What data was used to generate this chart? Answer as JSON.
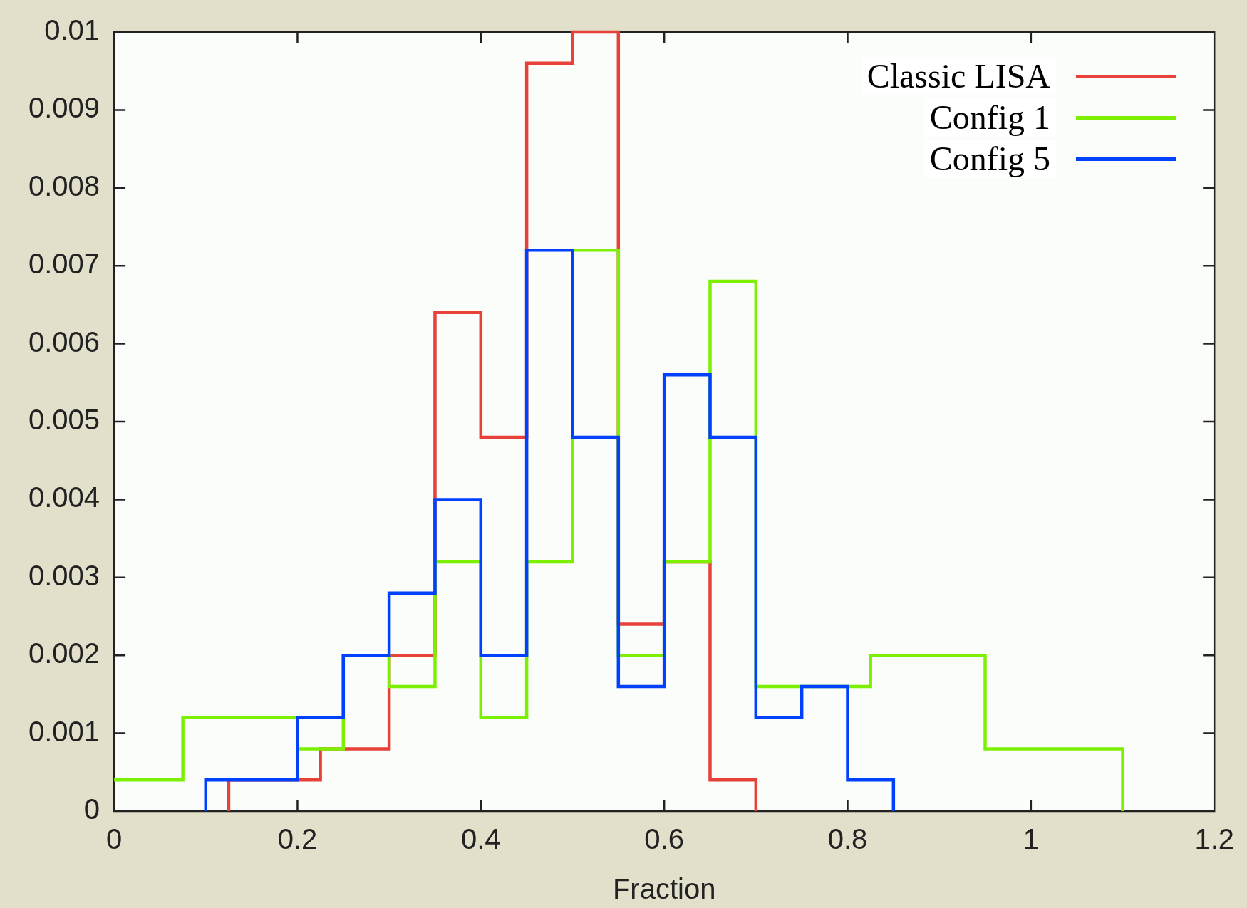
{
  "chart_data": {
    "type": "step",
    "xlabel": "Fraction",
    "xlim": [
      0,
      1.2
    ],
    "xticks": [
      0,
      0.2,
      0.4,
      0.6,
      0.8,
      1,
      1.2
    ],
    "ylim": [
      0,
      0.01
    ],
    "yticks": [
      0,
      0.001,
      0.002,
      0.003,
      0.004,
      0.005,
      0.006,
      0.007,
      0.008,
      0.009,
      0.01
    ],
    "legend": "top right",
    "series": [
      {
        "name": "Classic LISA",
        "color": "#e8413a",
        "x": [
          0.125,
          0.125,
          0.225,
          0.3,
          0.35,
          0.4,
          0.45,
          0.5,
          0.55,
          0.6,
          0.65,
          0.7
        ],
        "values": [
          0,
          0.0004,
          0.0008,
          0.002,
          0.0064,
          0.0048,
          0.0096,
          0.01,
          0.0024,
          0.0032,
          0.0004,
          0
        ]
      },
      {
        "name": "Config 1",
        "color": "#7cf000",
        "x": [
          0,
          0.075,
          0.2,
          0.25,
          0.3,
          0.35,
          0.4,
          0.45,
          0.5,
          0.55,
          0.6,
          0.65,
          0.7,
          0.825,
          0.95,
          1.1
        ],
        "values": [
          0.0004,
          0.0012,
          0.0008,
          0.002,
          0.0016,
          0.0032,
          0.0012,
          0.0032,
          0.0072,
          0.002,
          0.0032,
          0.0068,
          0.0016,
          0.002,
          0.0008,
          0
        ]
      },
      {
        "name": "Config 5",
        "color": "#0040ff",
        "x": [
          0.1,
          0.1,
          0.2,
          0.25,
          0.3,
          0.35,
          0.4,
          0.45,
          0.5,
          0.55,
          0.6,
          0.65,
          0.7,
          0.75,
          0.8,
          0.85
        ],
        "values": [
          0,
          0.0004,
          0.0012,
          0.002,
          0.0028,
          0.004,
          0.002,
          0.0072,
          0.0048,
          0.0016,
          0.0056,
          0.0048,
          0.0012,
          0.0016,
          0.0004,
          0
        ]
      }
    ]
  }
}
